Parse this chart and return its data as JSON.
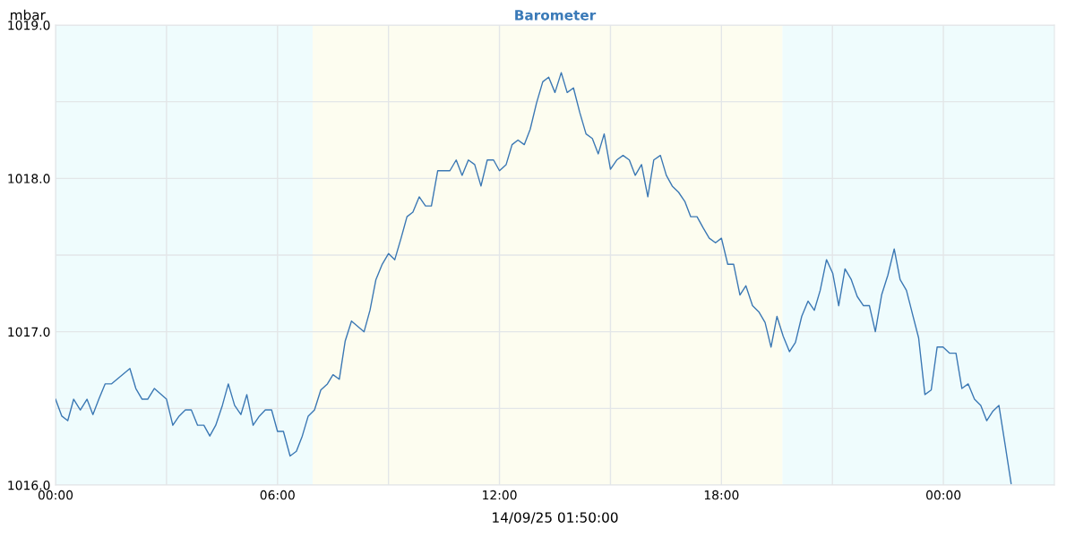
{
  "chart_data": {
    "type": "line",
    "title": "Barometer",
    "xlabel": "14/09/25 01:50:00",
    "ylabel": "mbar",
    "x": [
      0.0,
      0.17,
      0.33,
      0.49,
      0.67,
      0.85,
      1.01,
      1.17,
      1.34,
      1.51,
      2.01,
      2.17,
      2.34,
      2.49,
      2.67,
      3.0,
      3.17,
      3.34,
      3.51,
      3.67,
      3.84,
      4.01,
      4.17,
      4.33,
      4.51,
      4.67,
      4.84,
      5.01,
      5.17,
      5.34,
      5.51,
      5.67,
      5.84,
      6.0,
      6.16,
      6.34,
      6.51,
      6.67,
      6.83,
      7.0,
      7.17,
      7.35,
      7.5,
      7.67,
      7.83,
      8.0,
      8.34,
      8.5,
      8.66,
      8.83,
      9.0,
      9.17,
      9.34,
      9.5,
      9.66,
      9.83,
      10.0,
      10.16,
      10.33,
      10.66,
      10.83,
      10.99,
      11.16,
      11.33,
      11.5,
      11.67,
      11.84,
      12.0,
      12.18,
      12.34,
      12.5,
      12.67,
      12.83,
      13.0,
      13.17,
      13.33,
      13.5,
      13.67,
      13.83,
      14.0,
      14.17,
      14.34,
      14.51,
      14.67,
      14.83,
      15.0,
      15.17,
      15.34,
      15.51,
      15.67,
      15.84,
      16.01,
      16.17,
      16.35,
      16.51,
      16.67,
      16.84,
      17.01,
      17.17,
      17.34,
      17.5,
      17.67,
      17.84,
      18.0,
      18.17,
      18.33,
      18.5,
      18.66,
      18.84,
      19.01,
      19.18,
      19.34,
      19.5,
      19.67,
      19.84,
      20.0,
      20.17,
      20.34,
      20.51,
      20.67,
      20.84,
      21.01,
      21.17,
      21.34,
      21.51,
      21.67,
      21.84,
      22.0,
      22.16,
      22.33,
      22.5,
      22.67,
      22.83,
      23.0,
      23.17,
      23.33,
      23.5,
      23.67,
      23.83,
      23.99,
      24.17,
      24.34,
      24.5,
      24.67,
      24.84,
      25.01,
      25.17,
      25.33,
      25.5,
      25.67,
      25.83
    ],
    "series": [
      {
        "color": "#3b78b4",
        "values": [
          1016.56,
          1016.45,
          1016.42,
          1016.56,
          1016.49,
          1016.56,
          1016.46,
          1016.56,
          1016.66,
          1016.66,
          1016.76,
          1016.63,
          1016.56,
          1016.56,
          1016.63,
          1016.56,
          1016.39,
          1016.45,
          1016.49,
          1016.49,
          1016.39,
          1016.39,
          1016.32,
          1016.39,
          1016.52,
          1016.66,
          1016.52,
          1016.46,
          1016.59,
          1016.39,
          1016.45,
          1016.49,
          1016.49,
          1016.35,
          1016.35,
          1016.19,
          1016.22,
          1016.32,
          1016.45,
          1016.49,
          1016.62,
          1016.66,
          1016.72,
          1016.69,
          1016.94,
          1017.07,
          1017.0,
          1017.14,
          1017.34,
          1017.44,
          1017.51,
          1017.47,
          1017.61,
          1017.75,
          1017.78,
          1017.88,
          1017.82,
          1017.82,
          1018.05,
          1018.05,
          1018.12,
          1018.02,
          1018.12,
          1018.09,
          1017.95,
          1018.12,
          1018.12,
          1018.05,
          1018.09,
          1018.22,
          1018.25,
          1018.22,
          1018.32,
          1018.49,
          1018.63,
          1018.66,
          1018.56,
          1018.69,
          1018.56,
          1018.59,
          1018.43,
          1018.29,
          1018.26,
          1018.16,
          1018.29,
          1018.06,
          1018.12,
          1018.15,
          1018.12,
          1018.02,
          1018.09,
          1017.88,
          1018.12,
          1018.15,
          1018.02,
          1017.95,
          1017.91,
          1017.85,
          1017.75,
          1017.75,
          1017.68,
          1017.61,
          1017.58,
          1017.61,
          1017.44,
          1017.44,
          1017.24,
          1017.3,
          1017.17,
          1017.13,
          1017.06,
          1016.9,
          1017.1,
          1016.97,
          1016.87,
          1016.93,
          1017.1,
          1017.2,
          1017.14,
          1017.27,
          1017.47,
          1017.38,
          1017.17,
          1017.41,
          1017.34,
          1017.23,
          1017.17,
          1017.17,
          1017.0,
          1017.24,
          1017.37,
          1017.54,
          1017.34,
          1017.27,
          1017.11,
          1016.96,
          1016.59,
          1016.62,
          1016.9,
          1016.9,
          1016.86,
          1016.86,
          1016.63,
          1016.66,
          1016.56,
          1016.52,
          1016.42,
          1016.48,
          1016.52,
          1016.26,
          1016.01
        ]
      }
    ],
    "xlim": [
      0,
      27
    ],
    "xticks": [
      {
        "value": 0,
        "label": "00:00"
      },
      {
        "value": 3,
        "label": null
      },
      {
        "value": 6,
        "label": "06:00"
      },
      {
        "value": 9,
        "label": null
      },
      {
        "value": 12,
        "label": "12:00"
      },
      {
        "value": 15,
        "label": null
      },
      {
        "value": 18,
        "label": "18:00"
      },
      {
        "value": 21,
        "label": null
      },
      {
        "value": 24,
        "label": "00:00"
      }
    ],
    "ylim": [
      1016,
      1019
    ],
    "yticks": [
      {
        "value": 1016,
        "label": "1016.0"
      },
      {
        "value": 1016.5,
        "label": null
      },
      {
        "value": 1017,
        "label": "1017.0"
      },
      {
        "value": 1017.5,
        "label": null
      },
      {
        "value": 1018,
        "label": "1018.0"
      },
      {
        "value": 1018.5,
        "label": null
      },
      {
        "value": 1019,
        "label": "1019.0"
      }
    ],
    "bands": [
      {
        "axis": "x",
        "from": 0,
        "to": 6.95,
        "color": "#effcfd"
      },
      {
        "axis": "x",
        "from": 6.95,
        "to": 19.65,
        "color": "#fdfdf0"
      },
      {
        "axis": "x",
        "from": 19.65,
        "to": 27,
        "color": "#effcfd"
      }
    ],
    "grid": true,
    "legend": false,
    "marker": "none",
    "line_style": "solid"
  }
}
